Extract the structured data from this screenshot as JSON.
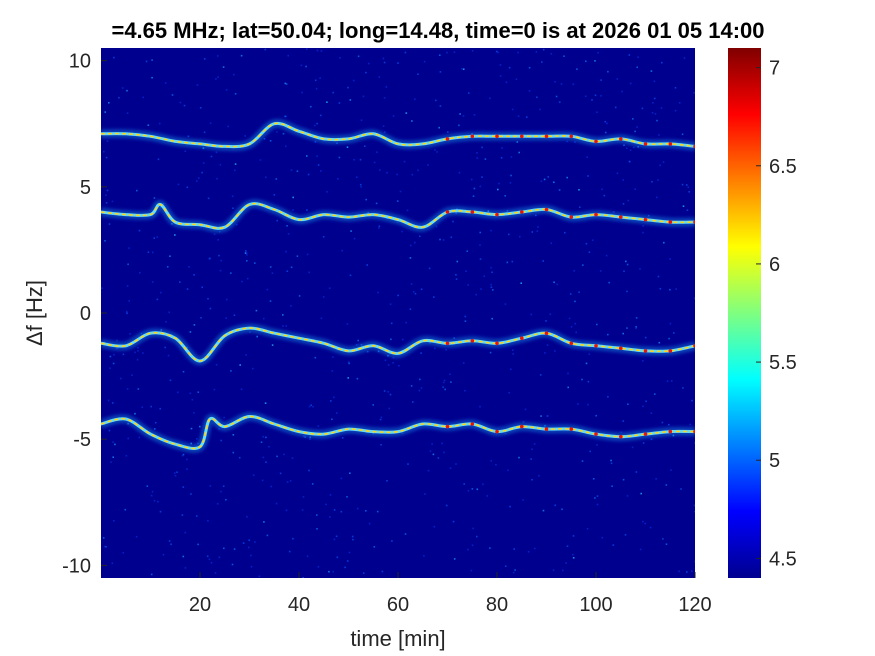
{
  "chart_data": {
    "type": "heatmap",
    "title": "=4.65 MHz;  lat=50.04; long=14.48, time=0 is at 2026 01 05 14:00",
    "xlabel": "time [min]",
    "ylabel": "Δf [Hz]",
    "xlim": [
      0,
      120
    ],
    "ylim": [
      -10.5,
      10.5
    ],
    "x_ticks": [
      20,
      40,
      60,
      80,
      100,
      120
    ],
    "y_ticks": [
      -10,
      -5,
      0,
      5,
      10
    ],
    "grid": false,
    "colormap": "jet",
    "colorbar": {
      "range": [
        4.4,
        7.1
      ],
      "ticks": [
        4.5,
        5,
        5.5,
        6,
        6.5,
        7
      ]
    },
    "series": [
      {
        "x": [
          0,
          5,
          10,
          15,
          20,
          25,
          30,
          35,
          40,
          45,
          50,
          55,
          60,
          65,
          70,
          75,
          80,
          85,
          90,
          95,
          100,
          105,
          110,
          115,
          120
        ],
        "y": [
          7.1,
          7.1,
          7.0,
          6.8,
          6.7,
          6.6,
          6.7,
          7.5,
          7.2,
          6.9,
          6.9,
          7.1,
          6.7,
          6.7,
          6.9,
          7.0,
          7.0,
          7.0,
          7.0,
          7.0,
          6.8,
          6.9,
          6.7,
          6.7,
          6.6
        ]
      },
      {
        "x": [
          0,
          5,
          10,
          12,
          15,
          20,
          25,
          30,
          35,
          40,
          45,
          50,
          55,
          60,
          65,
          70,
          75,
          80,
          85,
          90,
          95,
          100,
          105,
          110,
          115,
          120
        ],
        "y": [
          4.0,
          3.9,
          3.9,
          4.3,
          3.6,
          3.5,
          3.4,
          4.3,
          4.1,
          3.7,
          3.9,
          3.8,
          3.9,
          3.7,
          3.4,
          4.0,
          4.0,
          3.9,
          4.0,
          4.1,
          3.8,
          3.9,
          3.8,
          3.7,
          3.6,
          3.6
        ]
      },
      {
        "x": [
          0,
          5,
          10,
          15,
          20,
          25,
          30,
          35,
          40,
          45,
          50,
          55,
          60,
          65,
          70,
          75,
          80,
          85,
          90,
          95,
          100,
          105,
          110,
          115,
          120
        ],
        "y": [
          -1.2,
          -1.3,
          -0.8,
          -1.0,
          -1.9,
          -0.9,
          -0.6,
          -0.8,
          -1.0,
          -1.2,
          -1.5,
          -1.3,
          -1.6,
          -1.1,
          -1.2,
          -1.1,
          -1.2,
          -1.0,
          -0.8,
          -1.2,
          -1.3,
          -1.4,
          -1.5,
          -1.5,
          -1.3
        ]
      },
      {
        "x": [
          0,
          5,
          10,
          15,
          20,
          22,
          25,
          30,
          35,
          40,
          45,
          50,
          55,
          60,
          65,
          70,
          75,
          80,
          85,
          90,
          95,
          100,
          105,
          110,
          115,
          120
        ],
        "y": [
          -4.4,
          -4.2,
          -4.8,
          -5.2,
          -5.3,
          -4.2,
          -4.5,
          -4.1,
          -4.4,
          -4.7,
          -4.8,
          -4.6,
          -4.7,
          -4.7,
          -4.4,
          -4.5,
          -4.4,
          -4.7,
          -4.5,
          -4.6,
          -4.6,
          -4.8,
          -4.9,
          -4.8,
          -4.7,
          -4.7
        ]
      }
    ]
  }
}
